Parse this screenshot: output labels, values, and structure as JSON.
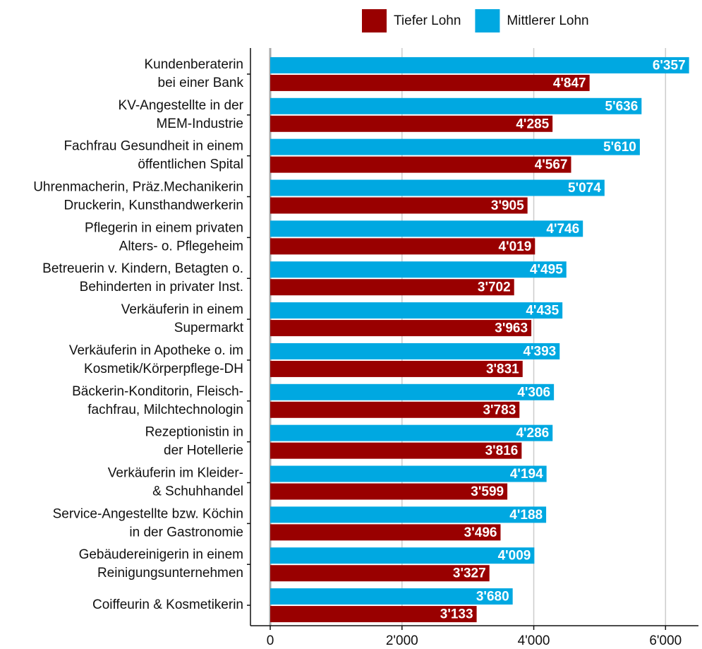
{
  "chart_data": {
    "type": "bar",
    "orientation": "horizontal",
    "categories": [
      [
        "Kundenberaterin",
        "bei einer Bank"
      ],
      [
        "KV-Angestellte in der",
        "MEM-Industrie"
      ],
      [
        "Fachfrau Gesundheit in einem",
        "öffentlichen Spital"
      ],
      [
        "Uhrenmacherin, Präz.Mechanikerin",
        "Druckerin, Kunsthandwerkerin"
      ],
      [
        "Pflegerin in einem privaten",
        "Alters- o. Pflegeheim"
      ],
      [
        "Betreuerin v. Kindern, Betagten o.",
        "Behinderten in privater Inst."
      ],
      [
        "Verkäuferin in einem",
        "Supermarkt"
      ],
      [
        "Verkäuferin in Apotheke o. im",
        "Kosmetik/Körperpflege-DH"
      ],
      [
        "Bäckerin-Konditorin, Fleisch-",
        "fachfrau, Milchtechnologin"
      ],
      [
        "Rezeptionistin in",
        "der Hotellerie"
      ],
      [
        "Verkäuferin im Kleider-",
        "& Schuhhandel"
      ],
      [
        "Service-Angestellte bzw. Köchin",
        "in der Gastronomie"
      ],
      [
        "Gebäudereinigerin in einem",
        "Reinigungsunternehmen"
      ],
      [
        "Coiffeurin & Kosmetikerin"
      ]
    ],
    "series": [
      {
        "name": "Tiefer Lohn",
        "color": "#990000",
        "values": [
          4847,
          4285,
          4567,
          3905,
          4019,
          3702,
          3963,
          3831,
          3783,
          3816,
          3599,
          3496,
          3327,
          3133
        ],
        "value_labels": [
          "4'847",
          "4'285",
          "4'567",
          "3'905",
          "4'019",
          "3'702",
          "3'963",
          "3'831",
          "3'783",
          "3'816",
          "3'599",
          "3'496",
          "3'327",
          "3'133"
        ]
      },
      {
        "name": "Mittlerer Lohn",
        "color": "#00a8e1",
        "values": [
          6357,
          5636,
          5610,
          5074,
          4746,
          4495,
          4435,
          4393,
          4306,
          4286,
          4194,
          4188,
          4009,
          3680
        ],
        "value_labels": [
          "6'357",
          "5'636",
          "5'610",
          "5'074",
          "4'746",
          "4'495",
          "4'435",
          "4'393",
          "4'306",
          "4'286",
          "4'194",
          "4'188",
          "4'009",
          "3'680"
        ]
      }
    ],
    "xlim": [
      -300,
      6500
    ],
    "xticks": [
      0,
      {
        "value": 2000,
        "label": "2'000"
      },
      {
        "value": 4000,
        "label": "4'000"
      },
      {
        "value": 6000,
        "label": "6'000"
      }
    ],
    "grid": true,
    "legend": "top"
  }
}
